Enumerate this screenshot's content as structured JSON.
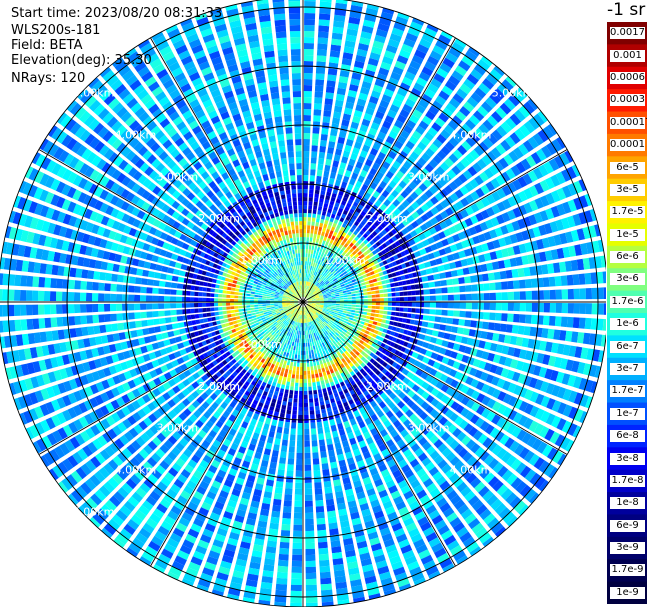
{
  "info": {
    "start_time": "Start time: 2023/08/20 08:31:33",
    "instrument": "WLS200s-181",
    "field": "Field: BETA",
    "elevation": "Elevation(deg): 35.30",
    "nrays": "NRays: 120"
  },
  "colorbar": {
    "unit": "-1 sr",
    "labels": [
      "0.0017",
      "0.001",
      "0.0006",
      "0.0003",
      "0.00017",
      "0.0001",
      "6e-5",
      "3e-5",
      "1.7e-5",
      "1e-5",
      "6e-6",
      "3e-6",
      "1.7e-6",
      "1e-6",
      "6e-7",
      "3e-7",
      "1.7e-7",
      "1e-7",
      "6e-8",
      "3e-8",
      "1.7e-8",
      "1e-8",
      "6e-9",
      "3e-9",
      "1.7e-9",
      "1e-9"
    ],
    "colors": [
      "#800000",
      "#b00000",
      "#e00000",
      "#ff1a00",
      "#ff5000",
      "#ff7a00",
      "#ffa400",
      "#ffcc00",
      "#fff200",
      "#e6ff00",
      "#b5ff40",
      "#80ff80",
      "#50ffb0",
      "#20ffe0",
      "#00e0ff",
      "#00b0ff",
      "#0080ff",
      "#0050ff",
      "#0024ff",
      "#0000f0",
      "#0000c8",
      "#00009c",
      "#000080",
      "#00006a",
      "#000050",
      "#000040"
    ]
  },
  "chart_data": {
    "type": "heatmap",
    "projection": "polar-ppi",
    "field": "BETA",
    "units": "-1 sr",
    "scale": "log",
    "n_rays": 120,
    "elevation_deg": 35.3,
    "max_range_km": 6.0,
    "range_rings_km": [
      1,
      2,
      3,
      4,
      5
    ],
    "ring_labels": [
      "1.00km",
      "2.00km",
      "3.00km",
      "4.00km",
      "5.00km"
    ],
    "spokes_every_deg": 30,
    "visible_ring_label_text": {
      "1.00km": [
        "1.00km",
        "1.00km",
        "1.00km"
      ],
      "2.00km": [
        "2.00km",
        "2.00km",
        "2.00km",
        "2.00km"
      ],
      "3.00km": [
        "3.00km",
        "3.00km",
        "3.00km",
        "3.00km"
      ],
      "4.00km": [
        "4.00km",
        "4.00km",
        "4.00km",
        "4.00km"
      ],
      "5.00km": [
        "5.00km",
        "5.00km",
        "5.00km"
      ]
    },
    "value_regions": [
      {
        "range_km": [
          0.0,
          0.3
        ],
        "approx_value": "1e-6"
      },
      {
        "range_km": [
          0.3,
          1.0
        ],
        "approx_value": "3e-7"
      },
      {
        "range_km": [
          1.0,
          1.4
        ],
        "approx_value": "1.7e-5"
      },
      {
        "range_km": [
          1.4,
          2.0
        ],
        "approx_value": "1e-8"
      },
      {
        "range_km": [
          2.0,
          6.0
        ],
        "approx_value": "6e-8"
      }
    ]
  }
}
